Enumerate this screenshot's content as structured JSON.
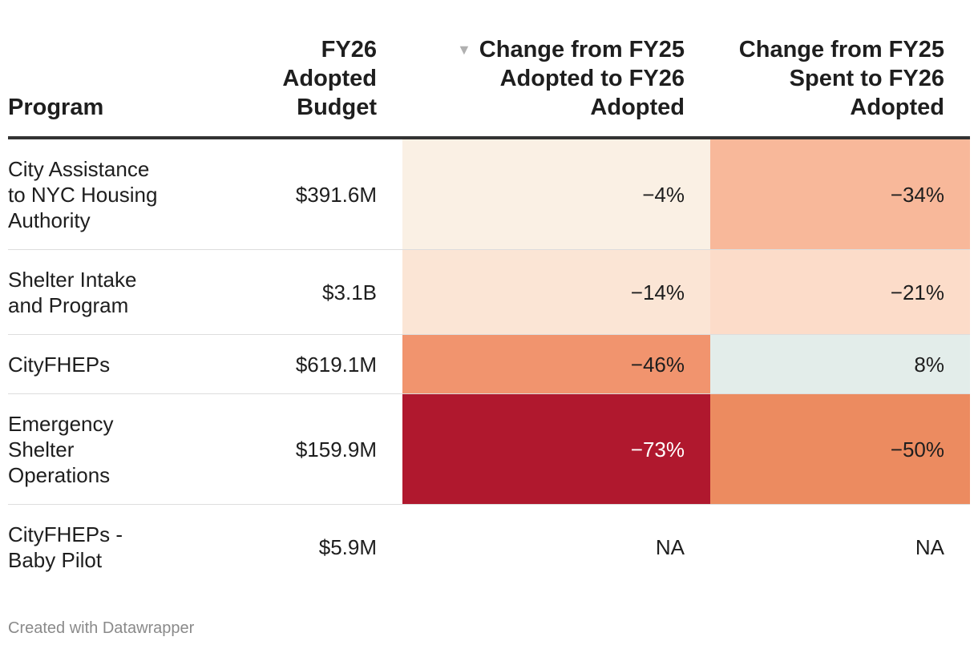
{
  "chart_data": {
    "type": "table",
    "columns": [
      {
        "key": "program",
        "label_lines": [
          "Program"
        ]
      },
      {
        "key": "budget",
        "label_lines": [
          "FY26",
          "Adopted",
          "Budget"
        ]
      },
      {
        "key": "chg_adopted",
        "label_lines": [
          "Change from FY25",
          "Adopted to FY26",
          "Adopted"
        ],
        "sorted": "descending",
        "sort_icon": "▼"
      },
      {
        "key": "chg_spent",
        "label_lines": [
          "Change from FY25",
          "Spent to FY26",
          "Adopted"
        ]
      }
    ],
    "rows": [
      {
        "program_lines": [
          "City Assistance",
          "to NYC Housing",
          "Authority"
        ],
        "budget": "$391.6M",
        "chg_adopted": "−4%",
        "chg_adopted_value": -4,
        "chg_spent": "−34%",
        "chg_spent_value": -34
      },
      {
        "program_lines": [
          "Shelter Intake",
          "and Program"
        ],
        "budget": "$3.1B",
        "chg_adopted": "−14%",
        "chg_adopted_value": -14,
        "chg_spent": "−21%",
        "chg_spent_value": -21
      },
      {
        "program_lines": [
          "CityFHEPs"
        ],
        "budget": "$619.1M",
        "chg_adopted": "−46%",
        "chg_adopted_value": -46,
        "chg_spent": "8%",
        "chg_spent_value": 8
      },
      {
        "program_lines": [
          "Emergency",
          "Shelter",
          "Operations"
        ],
        "budget": "$159.9M",
        "chg_adopted": "−73%",
        "chg_adopted_value": -73,
        "chg_spent": "−50%",
        "chg_spent_value": -50
      },
      {
        "program_lines": [
          "CityFHEPs -",
          "Baby Pilot"
        ],
        "budget": "$5.9M",
        "chg_adopted": "NA",
        "chg_adopted_value": null,
        "chg_spent": "NA",
        "chg_spent_value": null
      }
    ],
    "color_scale": {
      "stops": [
        {
          "value": -73,
          "color": "#b0182e"
        },
        {
          "value": -50,
          "color": "#ec8b60"
        },
        {
          "value": -46,
          "color": "#f1946e"
        },
        {
          "value": -34,
          "color": "#f8b89a"
        },
        {
          "value": -21,
          "color": "#fcdcc9"
        },
        {
          "value": -14,
          "color": "#fbe5d5"
        },
        {
          "value": -4,
          "color": "#faf0e4"
        },
        {
          "value": 0,
          "color": "#f2f0ec"
        },
        {
          "value": 8,
          "color": "#e3edea"
        }
      ],
      "dark_text_threshold": -55,
      "light_text_color": "#ffffff",
      "dark_text_color": "#1e1e1e"
    }
  },
  "footer": {
    "credit": "Created with Datawrapper"
  }
}
